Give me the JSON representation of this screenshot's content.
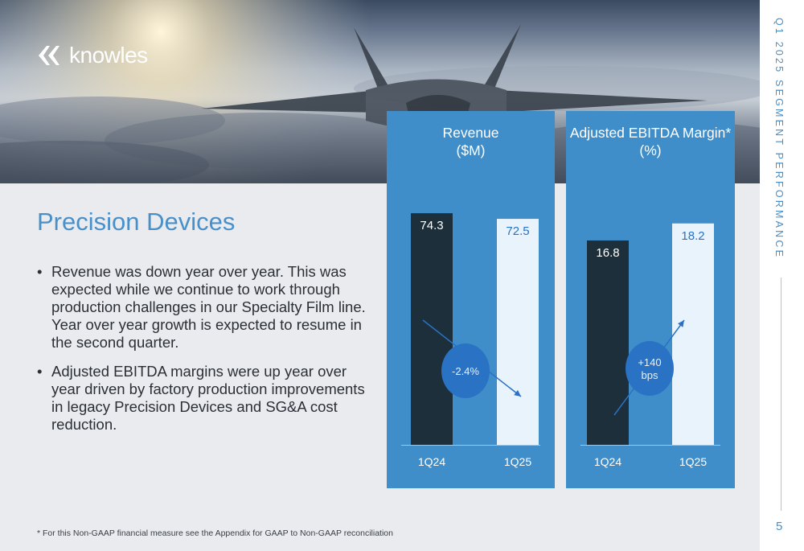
{
  "brand": {
    "logo_text": "knowles"
  },
  "section_title": "Precision Devices",
  "bullets": [
    "Revenue was down year over year. This was expected while we continue to work through production challenges in our Specialty Film line. Year over year growth is expected to resume in the second quarter.",
    "Adjusted EBITDA margins were up year over year driven by factory production improvements in legacy Precision Devices and SG&A cost reduction."
  ],
  "bullet_symbol": "•",
  "footnote": "* For this Non-GAAP financial measure see the Appendix for GAAP to Non-GAAP reconciliation",
  "side_title": "Q1 2025 SEGMENT PERFORMANCE",
  "page_number": "5",
  "colors": {
    "panel": "#3f8ec9",
    "bar_prior": "#1c2f3a",
    "bar_current": "#e8f3fb",
    "bubble": "#2a72c4",
    "accent_text": "#4a90c8"
  },
  "chart_data": [
    {
      "type": "bar",
      "title_lines": [
        "Revenue",
        "($M)"
      ],
      "categories": [
        "1Q24",
        "1Q25"
      ],
      "values": [
        74.3,
        72.5
      ],
      "value_labels": [
        "74.3",
        "72.5"
      ],
      "change_label": [
        "-2.4%"
      ],
      "change_direction": "down"
    },
    {
      "type": "bar",
      "title_lines": [
        "Adjusted EBITDA Margin*",
        "(%)"
      ],
      "categories": [
        "1Q24",
        "1Q25"
      ],
      "values": [
        16.8,
        18.2
      ],
      "value_labels": [
        "16.8",
        "18.2"
      ],
      "change_label": [
        "+140",
        "bps"
      ],
      "change_direction": "up"
    }
  ]
}
